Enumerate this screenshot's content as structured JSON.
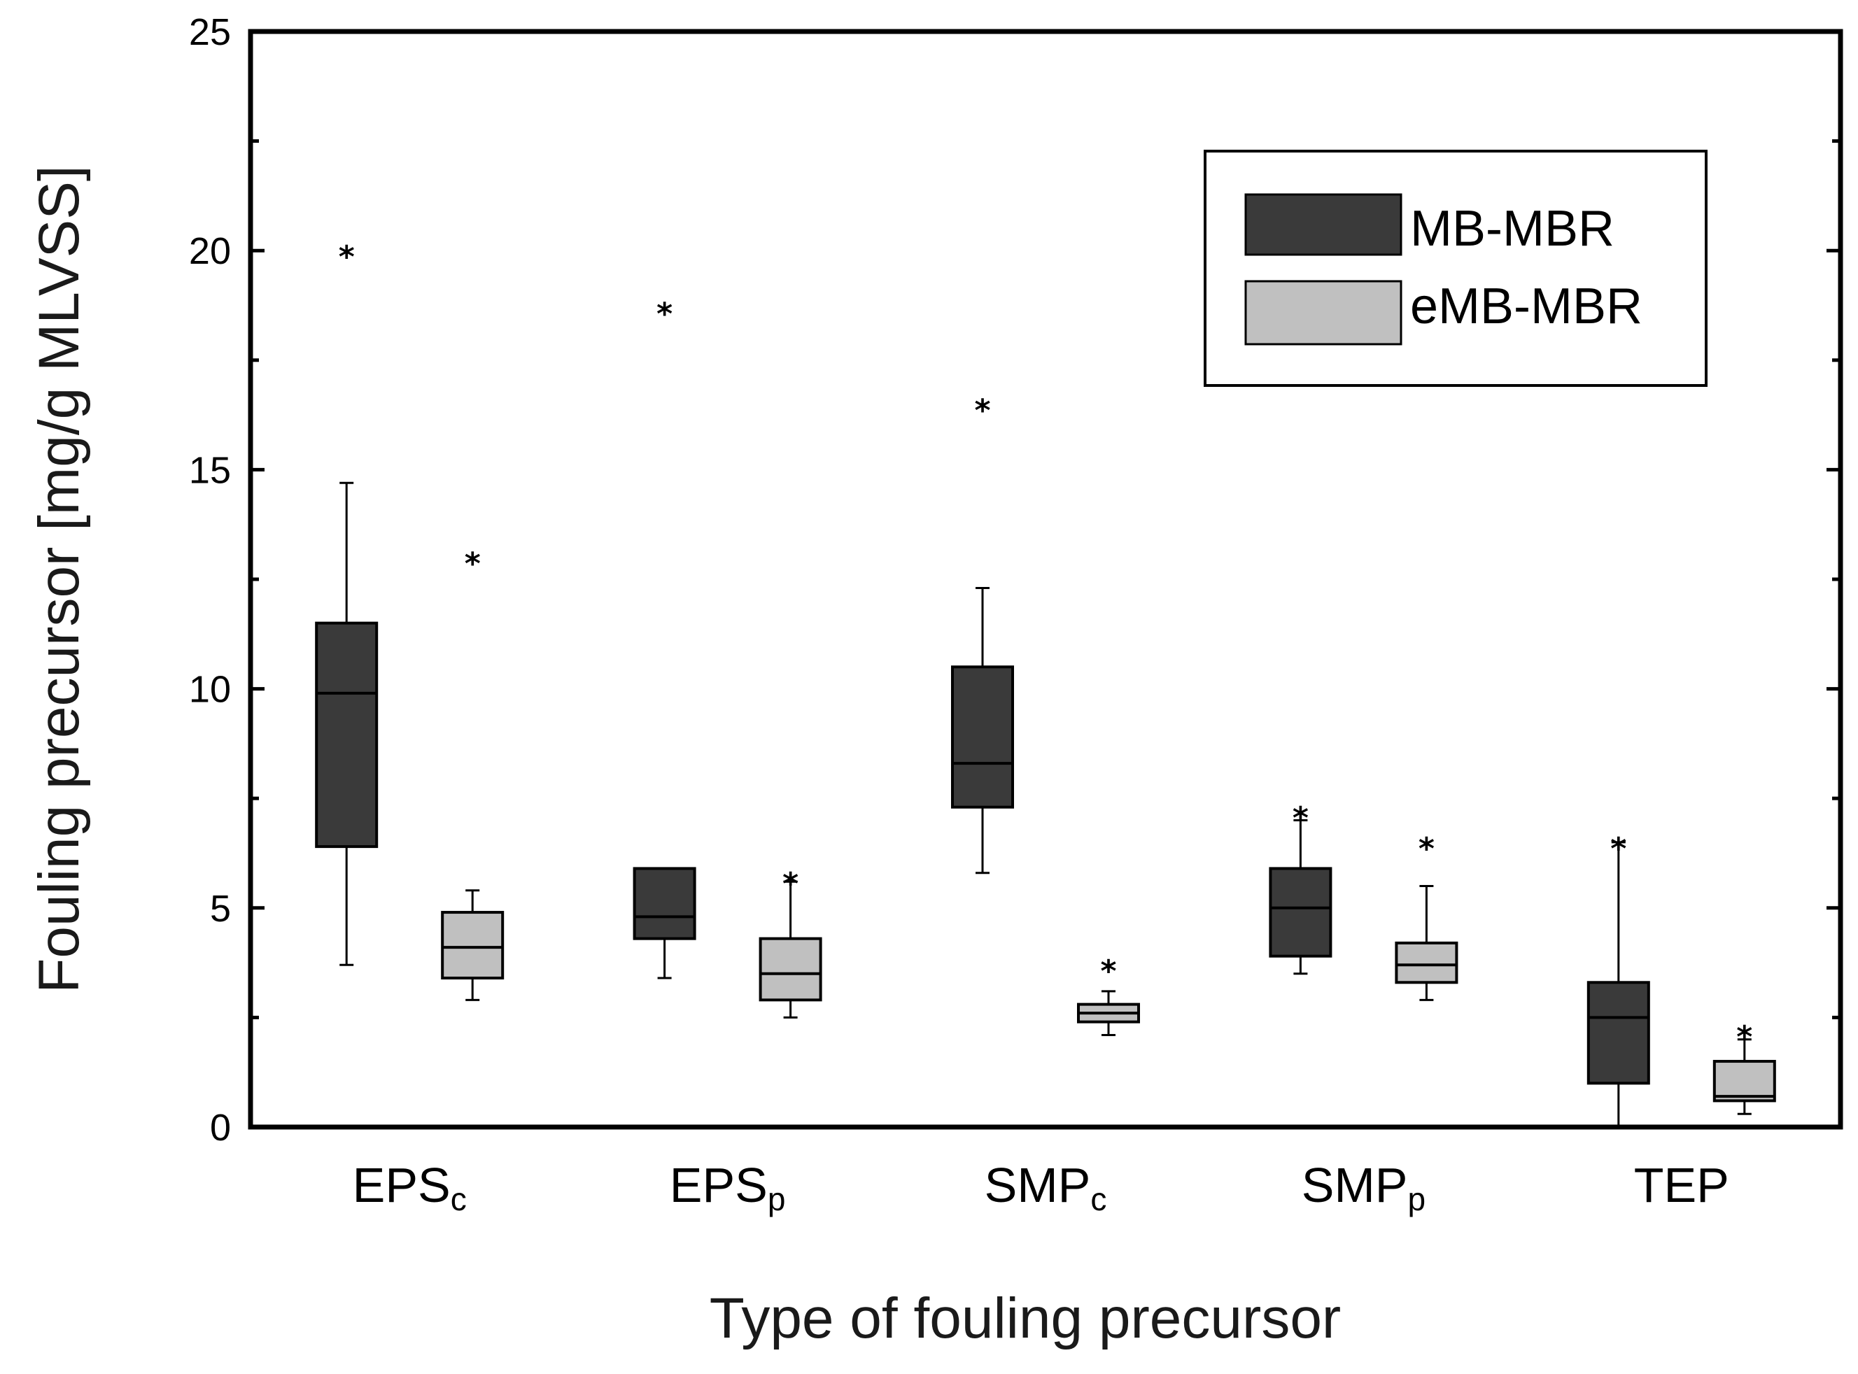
{
  "chart_data": {
    "type": "box",
    "xlabel": "Type of fouling precursor",
    "ylabel": "Fouling precursor [mg/g MLVSS]",
    "ylim": [
      0,
      25
    ],
    "yticks": [
      "0",
      "5",
      "10",
      "15",
      "20",
      "25"
    ],
    "categories": [
      {
        "base": "EPS",
        "sub": "c"
      },
      {
        "base": "EPS",
        "sub": "p"
      },
      {
        "base": "SMP",
        "sub": "c"
      },
      {
        "base": "SMP",
        "sub": "p"
      },
      {
        "base": "TEP",
        "sub": ""
      }
    ],
    "legend_position": "top-right",
    "outlier_marker": "*",
    "series": [
      {
        "name": "MB-MBR",
        "color": "#3a3a3a",
        "boxes": [
          {
            "whisker_low": 3.7,
            "q1": 6.4,
            "median": 9.9,
            "q3": 11.5,
            "whisker_high": 14.7,
            "outliers": [
              20.0
            ]
          },
          {
            "whisker_low": 3.4,
            "q1": 4.3,
            "median": 4.8,
            "q3": 5.9,
            "whisker_high": 5.9,
            "outliers": [
              18.7
            ]
          },
          {
            "whisker_low": 5.8,
            "q1": 7.3,
            "median": 8.3,
            "q3": 10.5,
            "whisker_high": 12.3,
            "outliers": [
              16.5
            ]
          },
          {
            "whisker_low": 3.5,
            "q1": 3.9,
            "median": 5.0,
            "q3": 5.9,
            "whisker_high": 7.0,
            "outliers": [
              7.2
            ]
          },
          {
            "whisker_low": 0.0,
            "q1": 1.0,
            "median": 2.5,
            "q3": 3.3,
            "whisker_high": 6.5,
            "outliers": [
              6.5
            ]
          }
        ]
      },
      {
        "name": "eMB-MBR",
        "color": "#c0c0c0",
        "boxes": [
          {
            "whisker_low": 2.9,
            "q1": 3.4,
            "median": 4.1,
            "q3": 4.9,
            "whisker_high": 5.4,
            "outliers": [
              13.0
            ]
          },
          {
            "whisker_low": 2.5,
            "q1": 2.9,
            "median": 3.5,
            "q3": 4.3,
            "whisker_high": 5.6,
            "outliers": [
              5.7
            ]
          },
          {
            "whisker_low": 2.1,
            "q1": 2.4,
            "median": 2.6,
            "q3": 2.8,
            "whisker_high": 3.1,
            "outliers": [
              3.7
            ]
          },
          {
            "whisker_low": 2.9,
            "q1": 3.3,
            "median": 3.7,
            "q3": 4.2,
            "whisker_high": 5.5,
            "outliers": [
              6.5
            ]
          },
          {
            "whisker_low": 0.3,
            "q1": 0.6,
            "median": 0.7,
            "q3": 1.5,
            "whisker_high": 2.0,
            "outliers": [
              2.2
            ]
          }
        ]
      }
    ]
  }
}
